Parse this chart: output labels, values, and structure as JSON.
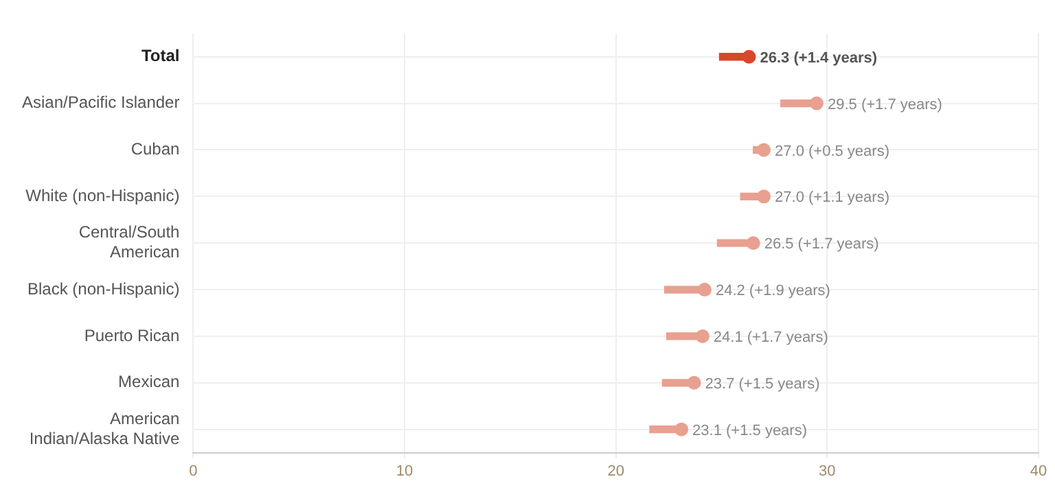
{
  "chart_data": {
    "type": "bar",
    "orientation": "horizontal",
    "categories": [
      "Total",
      "Asian/Pacific Islander",
      "Cuban",
      "White (non-Hispanic)",
      "Central/South\nAmerican",
      "Black (non-Hispanic)",
      "Puerto Rican",
      "Mexican",
      "American\nIndian/Alaska Native"
    ],
    "series": [
      {
        "base": [
          24.9,
          27.8,
          26.5,
          25.9,
          24.8,
          22.3,
          22.4,
          22.2,
          21.6
        ],
        "values": [
          1.4,
          1.7,
          0.5,
          1.1,
          1.7,
          1.9,
          1.7,
          1.5,
          1.5
        ],
        "colors": [
          "#d9472b",
          "#e8a090",
          "#e8a090",
          "#e8a090",
          "#e8a090",
          "#e8a090",
          "#e8a090",
          "#e8a090",
          "#e8a090"
        ]
      },
      {
        "type": "scatter",
        "values": [
          26.3,
          29.5,
          27.0,
          27.0,
          26.5,
          24.2,
          24.1,
          23.7,
          23.1
        ],
        "colors": [
          "#d9472b",
          "#e8a090",
          "#e8a090",
          "#e8a090",
          "#e8a090",
          "#e8a090",
          "#e8a090",
          "#e8a090",
          "#e8a090"
        ],
        "value_labels": [
          "26.3 (+1.4 years)",
          "29.5 (+1.7 years)",
          "27.0 (+0.5 years)",
          "27.0 (+1.1 years)",
          "26.5 (+1.7 years)",
          "24.2 (+1.9 years)",
          "24.1 (+1.7 years)",
          "23.7 (+1.5 years)",
          "23.1 (+1.5 years)"
        ]
      }
    ],
    "marker": "circle",
    "xlim": [
      0,
      40
    ],
    "xticks": [
      0,
      10,
      20,
      30,
      40
    ],
    "grid": true,
    "legend": false
  }
}
